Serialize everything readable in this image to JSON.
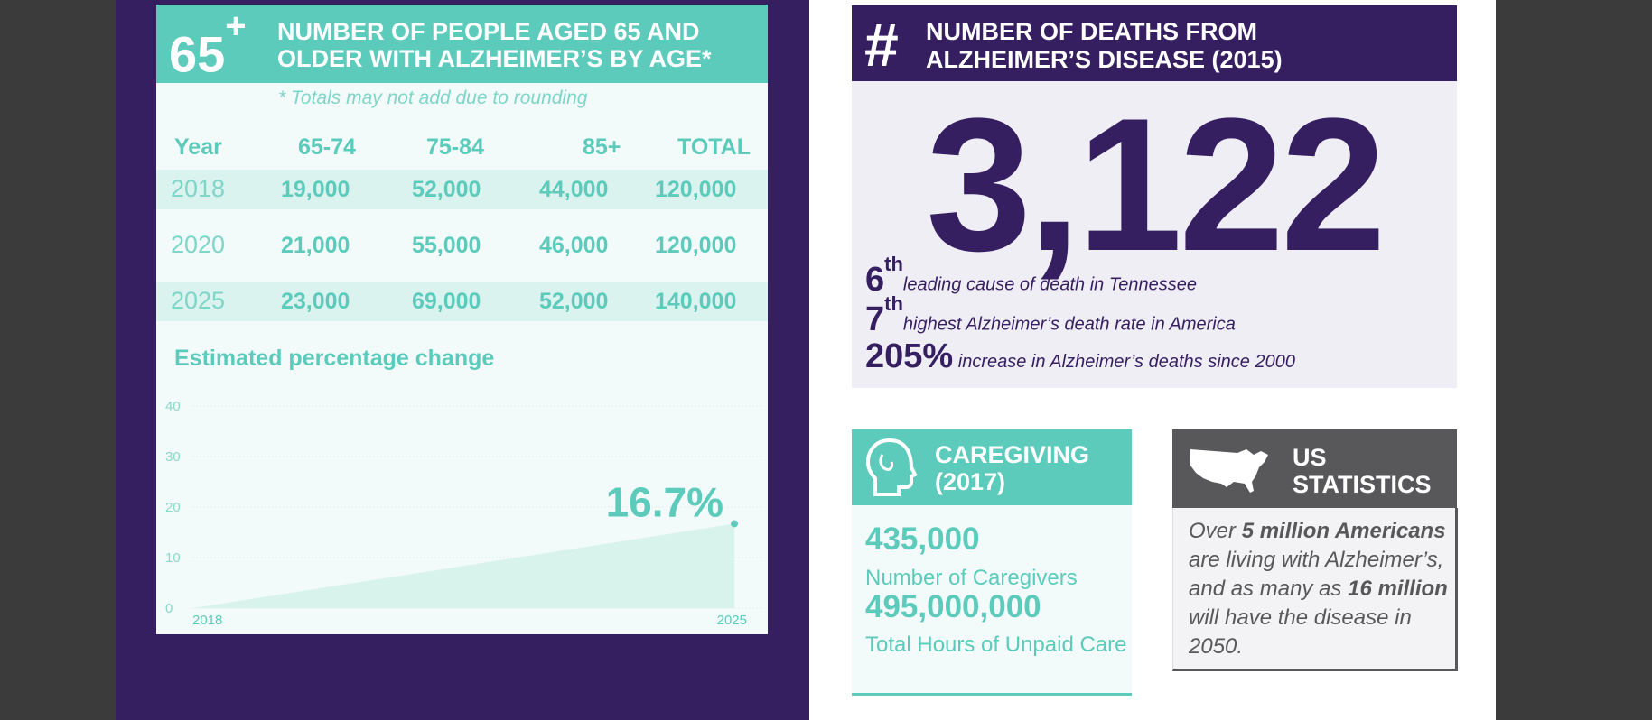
{
  "left_card": {
    "big_symbol": "65",
    "big_sup": "+",
    "title": "NUMBER OF PEOPLE AGED 65 AND OLDER WITH ALZHEIMER’S BY AGE*",
    "note": "* Totals may not add due to rounding",
    "headers": [
      "Year",
      "65-74",
      "75-84",
      "85+",
      "TOTAL"
    ],
    "rows": [
      {
        "year": "2018",
        "a": "19,000",
        "b": "52,000",
        "c": "44,000",
        "total": "120,000"
      },
      {
        "year": "2020",
        "a": "21,000",
        "b": "55,000",
        "c": "46,000",
        "total": "120,000"
      },
      {
        "year": "2025",
        "a": "23,000",
        "b": "69,000",
        "c": "52,000",
        "total": "140,000"
      }
    ],
    "chart_title": "Estimated percentage change"
  },
  "chart_data": {
    "type": "area",
    "title": "Estimated percentage change",
    "x": [
      "2018",
      "2025"
    ],
    "values": [
      0,
      16.7
    ],
    "ylim": [
      0,
      40
    ],
    "yticks": [
      "0",
      "10",
      "20",
      "30",
      "40"
    ],
    "annotation": "16.7%",
    "grid": true,
    "accent": "#5ccbbb"
  },
  "deaths": {
    "symbol": "#",
    "title_line1": "NUMBER OF DEATHS FROM",
    "title_line2": "ALZHEIMER’S DISEASE (2015)",
    "big_number": "3,122",
    "stats": [
      {
        "num": "6",
        "sup": "th",
        "text": "leading cause of death in Tennessee"
      },
      {
        "num": "7",
        "sup": "th",
        "text": "highest Alzheimer’s death rate in America"
      },
      {
        "num": "205%",
        "sup": "",
        "text": "increase in Alzheimer’s deaths since 2000"
      }
    ]
  },
  "caregiving": {
    "icon": "head-profile-icon",
    "title_line1": "CAREGIVING",
    "title_line2": "(2017)",
    "num1": "435,000",
    "label1": "Number of Caregivers",
    "num2": "495,000,000",
    "label2": "Total Hours of Unpaid Care"
  },
  "us_stats": {
    "icon": "us-map-icon",
    "title_line1": "US",
    "title_line2": "STATISTICS",
    "t1": "Over ",
    "b1": "5 million Americans",
    "t2": " are living with Alzheimer’s, and as many as ",
    "b2": "16 million",
    "t3": " will have the disease in 2050."
  },
  "colors": {
    "purple": "#361f61",
    "teal": "#5ccbbb",
    "gray": "#58585a"
  }
}
